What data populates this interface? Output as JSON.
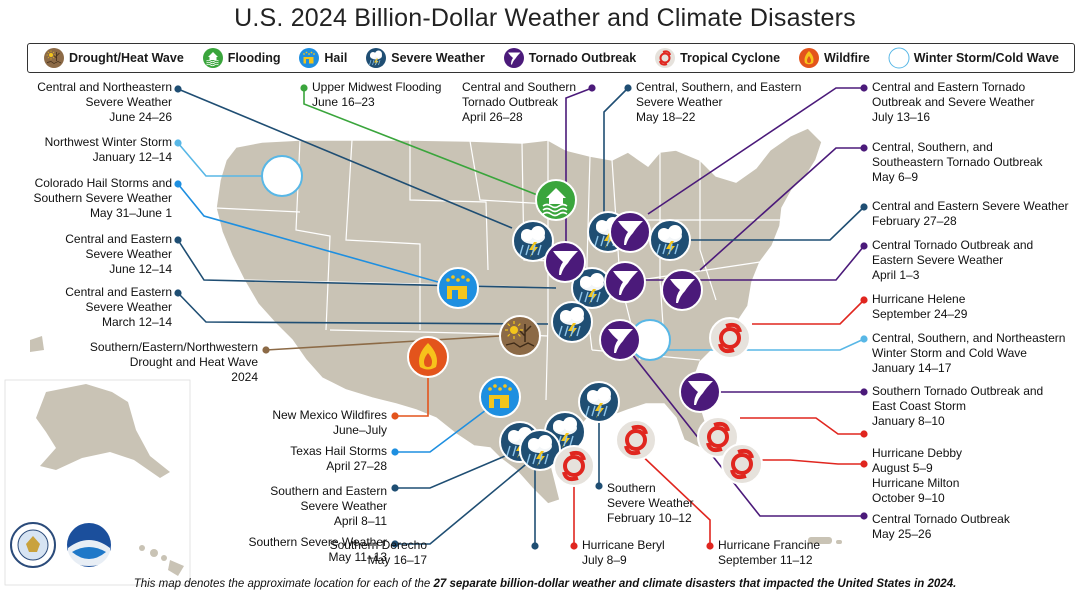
{
  "title": "U.S. 2024 Billion-Dollar Weather and Climate Disasters",
  "legend": [
    {
      "label": "Drought/Heat Wave",
      "icon": "drought-icon",
      "color": "#8c6a46"
    },
    {
      "label": "Flooding",
      "icon": "flooding-icon",
      "color": "#3aa53c"
    },
    {
      "label": "Hail",
      "icon": "hail-icon",
      "color": "#1e8fe0"
    },
    {
      "label": "Severe Weather",
      "icon": "severe-weather-icon",
      "color": "#1f4e73"
    },
    {
      "label": "Tornado Outbreak",
      "icon": "tornado-icon",
      "color": "#4b1a7a"
    },
    {
      "label": "Tropical Cyclone",
      "icon": "tropical-cyclone-icon",
      "color": "#e0261f"
    },
    {
      "label": "Wildfire",
      "icon": "wildfire-icon",
      "color": "#e3541c"
    },
    {
      "label": "Winter Storm/Cold Wave",
      "icon": "winter-storm-icon",
      "color": "#58b7e6"
    }
  ],
  "events_left": [
    {
      "id": "ne-severe-jun",
      "lines": [
        "Central and Northeastern",
        "Severe Weather",
        "June 24–26"
      ],
      "type": "severe"
    },
    {
      "id": "nw-winter",
      "lines": [
        "Northwest Winter Storm",
        "January 12–14"
      ],
      "type": "winter"
    },
    {
      "id": "co-hail",
      "lines": [
        "Colorado Hail Storms and",
        "Southern Severe Weather",
        "May 31–June 1"
      ],
      "type": "hail"
    },
    {
      "id": "ce-severe-jun",
      "lines": [
        "Central and Eastern",
        "Severe Weather",
        "June 12–14"
      ],
      "type": "severe"
    },
    {
      "id": "ce-severe-mar",
      "lines": [
        "Central and Eastern",
        "Severe Weather",
        "March 12–14"
      ],
      "type": "severe"
    },
    {
      "id": "drought",
      "lines": [
        "Southern/Eastern/Northwestern",
        "Drought and Heat Wave",
        "2024"
      ],
      "type": "drought"
    },
    {
      "id": "nm-wildfire",
      "lines": [
        "New Mexico Wildfires",
        "June–July"
      ],
      "type": "wildfire"
    },
    {
      "id": "tx-hail",
      "lines": [
        "Texas Hail Storms",
        "April 27–28"
      ],
      "type": "hail"
    },
    {
      "id": "se-severe-apr",
      "lines": [
        "Southern and Eastern",
        "Severe Weather",
        "April 8–11"
      ],
      "type": "severe"
    },
    {
      "id": "s-severe-may",
      "lines": [
        "Southern Severe Weather",
        "May 11–13"
      ],
      "type": "severe"
    }
  ],
  "events_top": [
    {
      "id": "um-flood",
      "lines": [
        "Upper Midwest Flooding",
        "June 16–23"
      ],
      "type": "flooding"
    },
    {
      "id": "cs-tornado",
      "lines": [
        "Central and Southern",
        "Tornado Outbreak",
        "April 26–28"
      ],
      "type": "tornado"
    },
    {
      "id": "cse-severe",
      "lines": [
        "Central, Southern, and Eastern",
        "Severe Weather",
        "May 18–22"
      ],
      "type": "severe"
    }
  ],
  "events_right": [
    {
      "id": "ce-tornado-jul",
      "lines": [
        "Central and Eastern Tornado",
        "Outbreak and Severe Weather",
        "July 13–16"
      ],
      "type": "tornado"
    },
    {
      "id": "css-tornado",
      "lines": [
        "Central, Southern, and",
        "Southeastern Tornado Outbreak",
        "May 6–9"
      ],
      "type": "tornado"
    },
    {
      "id": "ce-severe-feb",
      "lines": [
        "Central and Eastern Severe Weather",
        "February 27–28"
      ],
      "type": "severe"
    },
    {
      "id": "c-tornado-apr",
      "lines": [
        "Central Tornado Outbreak and",
        "Eastern Severe Weather",
        "April 1–3"
      ],
      "type": "tornado"
    },
    {
      "id": "helene",
      "lines": [
        "Hurricane Helene",
        "September 24–29"
      ],
      "type": "cyclone"
    },
    {
      "id": "csn-winter",
      "lines": [
        "Central, Southern, and Northeastern",
        "Winter Storm and Cold Wave",
        "January 14–17"
      ],
      "type": "winter"
    },
    {
      "id": "s-tornado-jan",
      "lines": [
        "Southern Tornado Outbreak and",
        "East Coast Storm",
        "January 8–10"
      ],
      "type": "tornado"
    },
    {
      "id": "debby",
      "lines": [
        "Hurricane Debby",
        "August 5–9"
      ],
      "type": "cyclone"
    },
    {
      "id": "milton",
      "lines": [
        "Hurricane Milton",
        "October 9–10"
      ],
      "type": "cyclone"
    },
    {
      "id": "c-tornado-may",
      "lines": [
        "Central Tornado Outbreak",
        "May 25–26"
      ],
      "type": "tornado"
    }
  ],
  "events_bottom": [
    {
      "id": "derecho",
      "lines": [
        "Southern Derecho",
        "May 16–17"
      ],
      "type": "severe"
    },
    {
      "id": "beryl",
      "lines": [
        "Hurricane Beryl",
        "July 8–9"
      ],
      "type": "cyclone"
    },
    {
      "id": "s-severe-feb",
      "lines": [
        "Southern",
        "Severe Weather",
        "February 10–12"
      ],
      "type": "severe"
    },
    {
      "id": "francine",
      "lines": [
        "Hurricane Francine",
        "September 11–12"
      ],
      "type": "cyclone"
    }
  ],
  "footnote_pre": "This map denotes the approximate location for each of the ",
  "footnote_bold": "27 separate billion-dollar weather and climate disasters that impacted the United States in 2024.",
  "colors": {
    "land": "#c9c3b5",
    "border": "#ffffff",
    "severe": "#1f4e73",
    "tornado": "#4b1a7a",
    "cyclone": "#e0261f",
    "hail": "#1e8fe0",
    "winter": "#58b7e6",
    "flooding": "#3aa53c",
    "drought": "#8c6a46",
    "wildfire": "#e3541c"
  }
}
